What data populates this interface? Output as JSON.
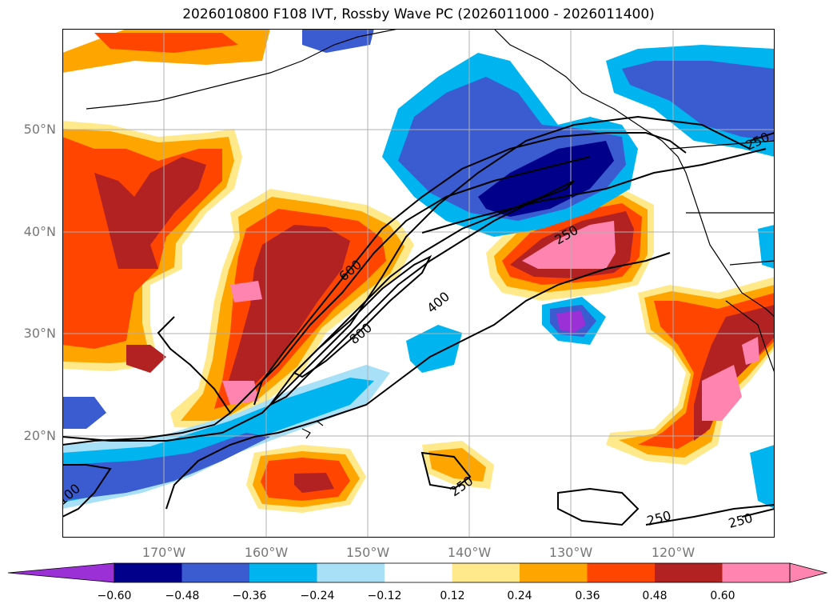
{
  "title": "2026010800 F108 IVT, Rossby Wave PC (2026011000 - 2026011400)",
  "lat_labels": [
    "50°N",
    "40°N",
    "30°N",
    "20°N"
  ],
  "lon_labels": [
    "170°W",
    "160°W",
    "150°W",
    "140°W",
    "130°W",
    "120°W"
  ],
  "contour_labels": {
    "c250a": "250",
    "c250b": "250",
    "c250c": "250",
    "c250d": "250",
    "c250e": "250",
    "c400": "400",
    "c600": "600",
    "c800": "800",
    "c100": "100"
  },
  "colorbar": {
    "ticks": [
      "−0.60",
      "−0.48",
      "−0.36",
      "−0.24",
      "−0.12",
      "0.12",
      "0.24",
      "0.36",
      "0.48",
      "0.60"
    ],
    "colors": {
      "below": "#9b30d6",
      "bins": [
        "#00008b",
        "#3b5bd0",
        "#00b4f0",
        "#a8e0f8",
        "#ffffff",
        "#ffe98a",
        "#ffa500",
        "#ff4500",
        "#b22222",
        "#ff85b0"
      ],
      "above": "#ff85b0"
    }
  }
}
